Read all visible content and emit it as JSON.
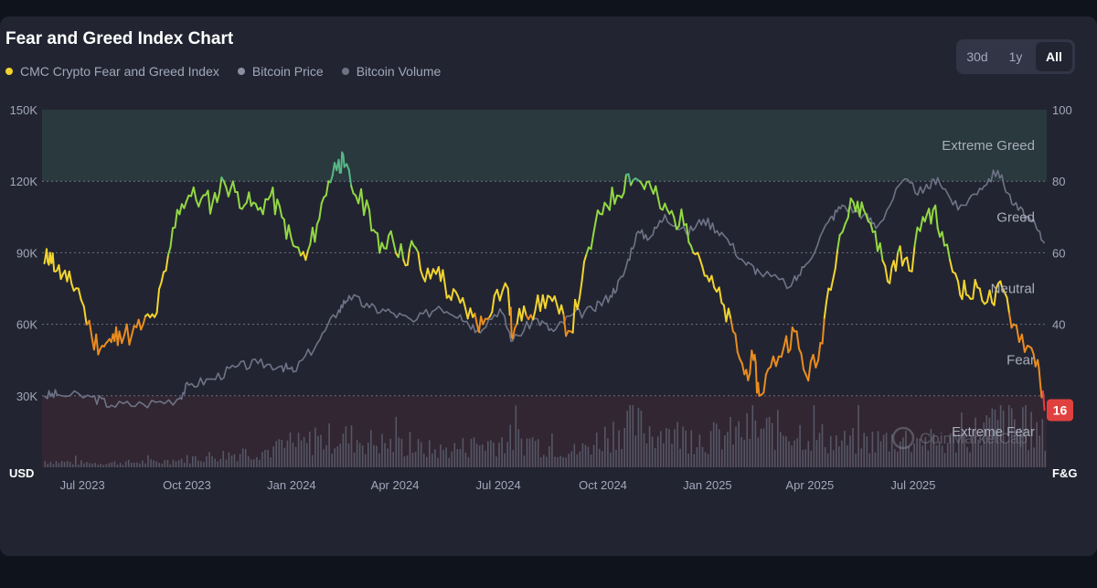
{
  "title": "Fear and Greed Index Chart",
  "legend": [
    {
      "label": "CMC Crypto Fear and Greed Index",
      "color": "#f3d42f"
    },
    {
      "label": "Bitcoin Price",
      "color": "#8a8fa3"
    },
    {
      "label": "Bitcoin Volume",
      "color": "#6d7285"
    }
  ],
  "range_buttons": [
    {
      "label": "30d",
      "active": false
    },
    {
      "label": "1y",
      "active": false
    },
    {
      "label": "All",
      "active": true
    }
  ],
  "colors": {
    "greed_line": "#93d843",
    "neutral_line": "#f3d42f",
    "fear_line": "#ea8c1f",
    "extreme_fear_line": "#ea3943",
    "extreme_greed_line": "#57b886",
    "price_line": "#6f7387",
    "volume_bar": "#5c5f70"
  },
  "watermark": "CoinMarketCap",
  "chart_data": {
    "type": "line",
    "y_left_label": "USD",
    "y_right_label": "F&G",
    "y_left_ticks": [
      "150K",
      "120K",
      "90K",
      "60K",
      "30K"
    ],
    "y_right_ticks": [
      "100",
      "80",
      "60",
      "40"
    ],
    "y_left_range": [
      0,
      150000
    ],
    "y_right_range": [
      0,
      100
    ],
    "x_ticks": [
      "Jul 2023",
      "Oct 2023",
      "Jan 2024",
      "Apr 2024",
      "Jul 2024",
      "Oct 2024",
      "Jan 2025",
      "Apr 2025",
      "Jul 2025"
    ],
    "zones": [
      {
        "label": "Extreme Greed",
        "from": 80,
        "to": 100
      },
      {
        "label": "Greed",
        "from": 60,
        "to": 80
      },
      {
        "label": "Neutral",
        "from": 40,
        "to": 60
      },
      {
        "label": "Fear",
        "from": 20,
        "to": 40
      },
      {
        "label": "Extreme Fear",
        "from": 0,
        "to": 20
      }
    ],
    "current_value": "16",
    "series": [
      {
        "name": "CMC Crypto Fear and Greed Index",
        "x": [
          "2023-06-20",
          "2023-06-25",
          "2023-07-01",
          "2023-07-10",
          "2023-07-20",
          "2023-08-01",
          "2023-08-10",
          "2023-08-18",
          "2023-08-25",
          "2023-09-05",
          "2023-09-15",
          "2023-09-25",
          "2023-10-05",
          "2023-10-15",
          "2023-10-25",
          "2023-11-05",
          "2023-11-15",
          "2023-11-25",
          "2023-12-05",
          "2023-12-15",
          "2023-12-25",
          "2024-01-05",
          "2024-01-15",
          "2024-01-25",
          "2024-02-05",
          "2024-02-15",
          "2024-02-25",
          "2024-03-05",
          "2024-03-10",
          "2024-03-20",
          "2024-04-01",
          "2024-04-10",
          "2024-04-20",
          "2024-05-01",
          "2024-05-10",
          "2024-05-20",
          "2024-06-01",
          "2024-06-10",
          "2024-06-20",
          "2024-07-01",
          "2024-07-10",
          "2024-07-20",
          "2024-08-01",
          "2024-08-05",
          "2024-08-15",
          "2024-08-25",
          "2024-09-05",
          "2024-09-15",
          "2024-09-25",
          "2024-10-05",
          "2024-10-15",
          "2024-10-25",
          "2024-11-05",
          "2024-11-15",
          "2024-11-25",
          "2024-12-05",
          "2024-12-15",
          "2024-12-25",
          "2025-01-05",
          "2025-01-15",
          "2025-01-25",
          "2025-02-05",
          "2025-02-15",
          "2025-02-25",
          "2025-03-05",
          "2025-03-10",
          "2025-03-20",
          "2025-04-01",
          "2025-04-10",
          "2025-04-20",
          "2025-05-01",
          "2025-05-10",
          "2025-05-20",
          "2025-06-01",
          "2025-06-10",
          "2025-06-20",
          "2025-07-01",
          "2025-07-10",
          "2025-07-20",
          "2025-08-01",
          "2025-08-10",
          "2025-08-20",
          "2025-09-01",
          "2025-09-10",
          "2025-09-20",
          "2025-10-01",
          "2025-10-10",
          "2025-10-20",
          "2025-11-01",
          "2025-11-10",
          "2025-11-16"
        ],
        "values": [
          57,
          60,
          55,
          52,
          50,
          36,
          34,
          35,
          38,
          37,
          40,
          42,
          55,
          72,
          76,
          75,
          74,
          80,
          77,
          74,
          72,
          76,
          70,
          62,
          58,
          68,
          80,
          86,
          84,
          76,
          72,
          60,
          66,
          58,
          62,
          52,
          56,
          48,
          46,
          42,
          40,
          48,
          50,
          36,
          45,
          44,
          48,
          43,
          38,
          52,
          65,
          74,
          76,
          82,
          80,
          78,
          72,
          70,
          68,
          60,
          52,
          46,
          38,
          26,
          30,
          20,
          28,
          34,
          38,
          26,
          30,
          50,
          65,
          74,
          72,
          66,
          52,
          60,
          55,
          70,
          72,
          62,
          52,
          48,
          50,
          46,
          50,
          40,
          34,
          30,
          16
        ]
      },
      {
        "name": "Bitcoin Price",
        "x": [
          "2023-06-20",
          "2023-07-01",
          "2023-08-01",
          "2023-08-18",
          "2023-09-15",
          "2023-10-15",
          "2023-10-25",
          "2023-11-15",
          "2023-12-05",
          "2023-12-25",
          "2024-01-15",
          "2024-01-25",
          "2024-02-15",
          "2024-03-05",
          "2024-03-14",
          "2024-04-01",
          "2024-04-20",
          "2024-05-10",
          "2024-06-01",
          "2024-06-20",
          "2024-07-05",
          "2024-07-25",
          "2024-08-05",
          "2024-08-25",
          "2024-09-10",
          "2024-09-25",
          "2024-10-15",
          "2024-10-30",
          "2024-11-10",
          "2024-11-22",
          "2024-12-05",
          "2024-12-17",
          "2025-01-05",
          "2025-01-20",
          "2025-02-05",
          "2025-02-25",
          "2025-03-10",
          "2025-04-07",
          "2025-04-20",
          "2025-05-10",
          "2025-05-22",
          "2025-06-10",
          "2025-06-22",
          "2025-07-14",
          "2025-08-01",
          "2025-08-14",
          "2025-09-01",
          "2025-09-20",
          "2025-10-06",
          "2025-10-20",
          "2025-11-05",
          "2025-11-16"
        ],
        "values": [
          30000,
          30500,
          29500,
          26000,
          26500,
          28500,
          34500,
          37000,
          42000,
          43500,
          42500,
          40000,
          52000,
          66000,
          72000,
          67000,
          65000,
          61000,
          67500,
          64000,
          57500,
          66500,
          53000,
          62500,
          57000,
          63500,
          66000,
          72000,
          80000,
          98000,
          97000,
          106000,
          98000,
          104000,
          98500,
          86000,
          82000,
          76000,
          85000,
          103000,
          110000,
          106000,
          101000,
          120000,
          115000,
          121500,
          108000,
          117000,
          124500,
          110000,
          103000,
          94000
        ]
      },
      {
        "name": "Bitcoin Volume",
        "x": [
          "2023-06-20",
          "2023-08-01",
          "2023-10-01",
          "2023-11-15",
          "2024-01-10",
          "2024-03-05",
          "2024-04-15",
          "2024-06-01",
          "2024-08-05",
          "2024-10-01",
          "2024-11-12",
          "2024-12-10",
          "2025-01-20",
          "2025-02-28",
          "2025-04-07",
          "2025-05-20",
          "2025-07-15",
          "2025-08-20",
          "2025-10-10",
          "2025-11-16"
        ],
        "values": [
          12,
          8,
          11,
          22,
          35,
          60,
          45,
          32,
          55,
          30,
          85,
          70,
          55,
          70,
          72,
          48,
          55,
          45,
          90,
          60
        ]
      }
    ]
  }
}
